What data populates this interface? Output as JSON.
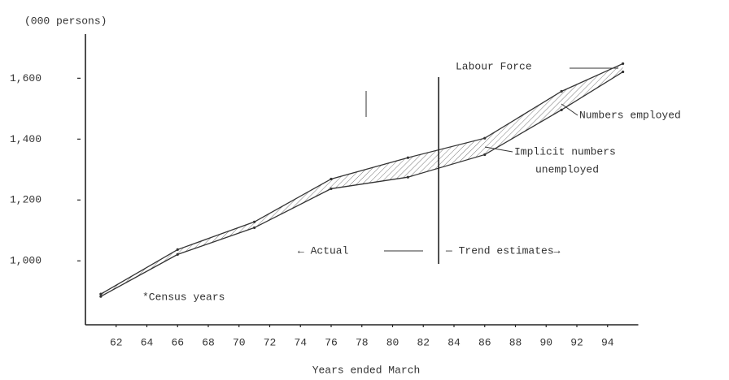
{
  "chart_data": {
    "type": "line",
    "unit_label": "(000 persons)",
    "xlabel": "Years ended March",
    "x": [
      61,
      66,
      71,
      76,
      81,
      86,
      91,
      95
    ],
    "series": [
      {
        "name": "Labour Force",
        "color": "#333333",
        "values": [
          891,
          1037,
          1128,
          1269,
          1339,
          1403,
          1557,
          1648
        ]
      },
      {
        "name": "Numbers employed",
        "color": "#333333",
        "values": [
          883,
          1021,
          1109,
          1237,
          1275,
          1349,
          1496,
          1621
        ]
      }
    ],
    "xlim": [
      60,
      96
    ],
    "xticks": [
      62,
      64,
      66,
      68,
      70,
      72,
      74,
      76,
      78,
      80,
      82,
      84,
      86,
      88,
      90,
      92,
      94
    ],
    "ylim": [
      790,
      1745
    ],
    "yticks": [
      {
        "value": 1000,
        "label": "1,000"
      },
      {
        "value": 1200,
        "label": "1,200"
      },
      {
        "value": 1400,
        "label": "1,400"
      },
      {
        "value": 1600,
        "label": "1,600"
      }
    ],
    "divider_x": 83,
    "gap_label": [
      "Implicit numbers",
      "unemployed"
    ],
    "actual_label": "← Actual",
    "trend_label": "— Trend estimates→",
    "note": "*Census years",
    "grid": false
  }
}
